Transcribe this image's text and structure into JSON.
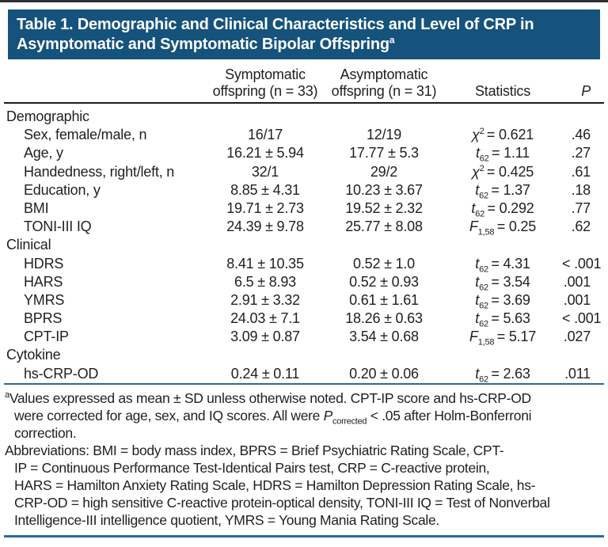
{
  "colors": {
    "band_bg": "#15527c",
    "band_text": "#ffffff",
    "rule_blue": "#2a6a9b",
    "rule_dark": "#1c1c1c",
    "top_rule": "#2f2f2f",
    "text": "#1f1f1f"
  },
  "title": {
    "line1": "Table 1. Demographic and Clinical Characteristics and Level of CRP in",
    "line2": "Asymptomatic and Symptomatic Bipolar Offspring",
    "superscript": "a"
  },
  "columns": {
    "symptomatic": [
      "Symptomatic",
      "offspring (n = 33)"
    ],
    "asymptomatic": [
      "Asymptomatic",
      "offspring (n = 31)"
    ],
    "statistics": "Statistics",
    "p": "P"
  },
  "rows": [
    {
      "type": "section",
      "label": "Demographic"
    },
    {
      "type": "item",
      "label": "Sex, female/male, n",
      "symptomatic": "16/17",
      "asymptomatic": "12/19",
      "stat": {
        "base": "χ",
        "sup": "2",
        "sub": "",
        "value": "= 0.621"
      },
      "p": ".46"
    },
    {
      "type": "item",
      "label": "Age, y",
      "symptomatic": "16.21 ± 5.94",
      "asymptomatic": "17.77 ± 5.3",
      "stat": {
        "base": "t",
        "sup": "",
        "sub": "62",
        "value": "= 1.11"
      },
      "p": ".27"
    },
    {
      "type": "item",
      "label": "Handedness, right/left, n",
      "symptomatic": "32/1",
      "asymptomatic": "29/2",
      "stat": {
        "base": "χ",
        "sup": "2",
        "sub": "",
        "value": "= 0.425"
      },
      "p": ".61"
    },
    {
      "type": "item",
      "label": "Education, y",
      "symptomatic": "8.85 ± 4.31",
      "asymptomatic": "10.23 ± 3.67",
      "stat": {
        "base": "t",
        "sup": "",
        "sub": "62",
        "value": "= 1.37"
      },
      "p": ".18"
    },
    {
      "type": "item",
      "label": "BMI",
      "symptomatic": "19.71 ± 2.73",
      "asymptomatic": "19.52 ± 2.32",
      "stat": {
        "base": "t",
        "sup": "",
        "sub": "62",
        "value": "= 0.292"
      },
      "p": ".77"
    },
    {
      "type": "item",
      "label": "TONI-III IQ",
      "symptomatic": "24.39 ± 9.78",
      "asymptomatic": "25.77 ± 8.08",
      "stat": {
        "base": "F",
        "sup": "",
        "sub": "1,58",
        "value": "= 0.25"
      },
      "p": ".62"
    },
    {
      "type": "section",
      "label": "Clinical"
    },
    {
      "type": "item",
      "label": "HDRS",
      "symptomatic": "8.41 ± 10.35",
      "asymptomatic": "0.52 ± 1.0",
      "stat": {
        "base": "t",
        "sup": "",
        "sub": "62",
        "value": "= 4.31"
      },
      "p": "< .001"
    },
    {
      "type": "item",
      "label": "HARS",
      "symptomatic": "6.5 ± 8.93",
      "asymptomatic": "0.52 ± 0.93",
      "stat": {
        "base": "t",
        "sup": "",
        "sub": "62",
        "value": "= 3.54"
      },
      "p": ".001"
    },
    {
      "type": "item",
      "label": "YMRS",
      "symptomatic": "2.91 ± 3.32",
      "asymptomatic": "0.61 ± 1.61",
      "stat": {
        "base": "t",
        "sup": "",
        "sub": "62",
        "value": "= 3.69"
      },
      "p": ".001"
    },
    {
      "type": "item",
      "label": "BPRS",
      "symptomatic": "24.03 ± 7.1",
      "asymptomatic": "18.26 ± 0.63",
      "stat": {
        "base": "t",
        "sup": "",
        "sub": "62",
        "value": "= 5.63"
      },
      "p": "< .001"
    },
    {
      "type": "item",
      "label": "CPT-IP",
      "symptomatic": "3.09 ± 0.87",
      "asymptomatic": "3.54 ± 0.68",
      "stat": {
        "base": "F",
        "sup": "",
        "sub": "1,58",
        "value": "= 5.17"
      },
      "p": ".027"
    },
    {
      "type": "section",
      "label": "Cytokine"
    },
    {
      "type": "item",
      "label": "hs-CRP-OD",
      "symptomatic": "0.24 ± 0.11",
      "asymptomatic": "0.20 ± 0.06",
      "stat": {
        "base": "t",
        "sup": "",
        "sub": "62",
        "value": "= 2.63"
      },
      "p": ".011"
    }
  ],
  "footnotes": {
    "note_a": [
      {
        "indent": false,
        "segs": [
          {
            "t": "a",
            "sup": true
          },
          {
            "t": "Values expressed as mean ± SD unless otherwise noted. CPT-IP score and hs-CRP-OD"
          }
        ]
      },
      {
        "indent": true,
        "segs": [
          {
            "t": "were corrected for age, sex, and IQ scores. All were "
          },
          {
            "t": "P",
            "i": true
          },
          {
            "t": "corrected",
            "sub": true
          },
          {
            "t": " < .05 after Holm-Bonferroni"
          }
        ]
      },
      {
        "indent": true,
        "segs": [
          {
            "t": "correction."
          }
        ]
      }
    ],
    "abbreviations": [
      {
        "indent": false,
        "segs": [
          {
            "t": "Abbreviations: BMI = body mass index, BPRS = Brief Psychiatric Rating Scale, CPT-"
          }
        ]
      },
      {
        "indent": true,
        "segs": [
          {
            "t": "IP = Continuous Performance Test-Identical Pairs test, CRP = C-reactive protein,"
          }
        ]
      },
      {
        "indent": true,
        "segs": [
          {
            "t": "HARS = Hamilton Anxiety Rating Scale, HDRS = Hamilton Depression Rating Scale, hs-"
          }
        ]
      },
      {
        "indent": true,
        "segs": [
          {
            "t": "CRP-OD = high sensitive C-reactive protein-optical density, TONI-III IQ = Test of Nonverbal"
          }
        ]
      },
      {
        "indent": true,
        "segs": [
          {
            "t": "Intelligence-III intelligence quotient, YMRS = Young Mania Rating Scale."
          }
        ]
      }
    ]
  }
}
